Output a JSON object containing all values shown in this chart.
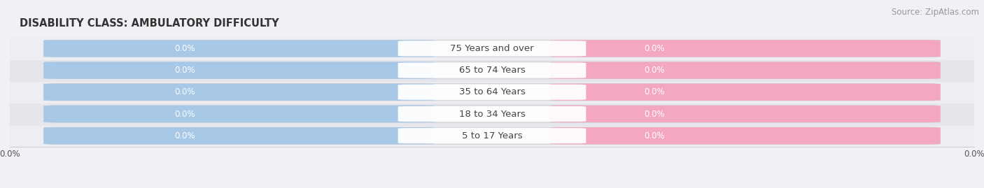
{
  "title": "DISABILITY CLASS: AMBULATORY DIFFICULTY",
  "source": "Source: ZipAtlas.com",
  "categories": [
    "5 to 17 Years",
    "18 to 34 Years",
    "35 to 64 Years",
    "65 to 74 Years",
    "75 Years and over"
  ],
  "male_values": [
    0.0,
    0.0,
    0.0,
    0.0,
    0.0
  ],
  "female_values": [
    0.0,
    0.0,
    0.0,
    0.0,
    0.0
  ],
  "male_color": "#a8c8e8",
  "female_color": "#f4a8c0",
  "pill_bg_color": "#e2e2ea",
  "row_bg_even": "#ededf2",
  "row_bg_odd": "#e5e5ec",
  "label_color": "#ffffff",
  "category_text_color": "#444444",
  "title_color": "#333333",
  "source_color": "#999999",
  "xlim_left": -1.0,
  "xlim_right": 1.0,
  "x_tick_left_label": "0.0%",
  "x_tick_right_label": "0.0%",
  "title_fontsize": 10.5,
  "source_fontsize": 8.5,
  "category_fontsize": 9.5,
  "value_fontsize": 8.5,
  "background_color": "#f0f0f5"
}
